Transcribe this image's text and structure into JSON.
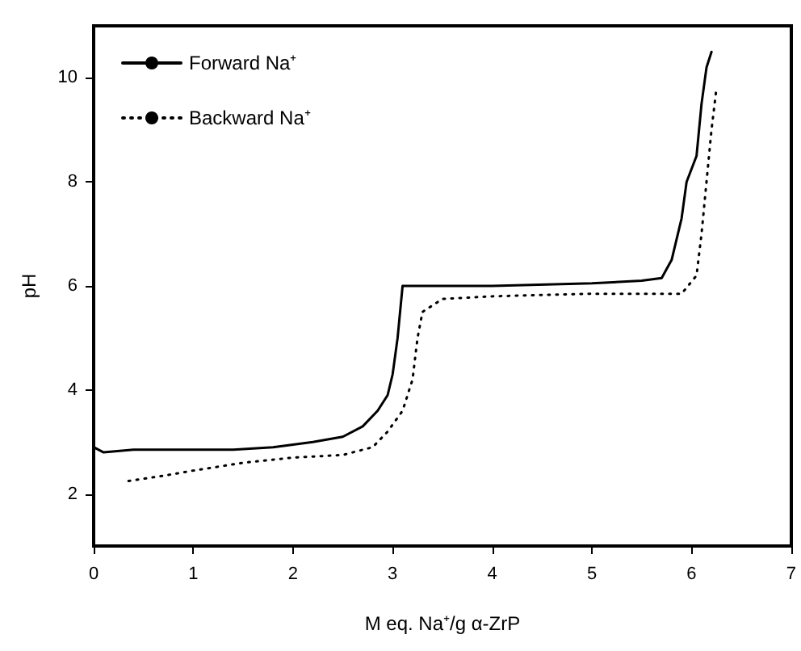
{
  "chart_data": {
    "type": "line",
    "xlabel": "M eq. Na⁺/g α-ZrP",
    "ylabel": "pH",
    "xlim": [
      0,
      7
    ],
    "xticks": [
      0,
      1,
      2,
      3,
      4,
      5,
      6,
      7
    ],
    "ylim": [
      1,
      11
    ],
    "yticks": [
      2,
      4,
      6,
      8,
      10
    ],
    "grid": false,
    "legend": "top left",
    "marker": "none",
    "series": [
      {
        "name": "Forward Na⁺",
        "color": "#000000",
        "line_style": "solid",
        "x": [
          0,
          0.1,
          0.4,
          1.4,
          1.8,
          2.2,
          2.5,
          2.7,
          2.85,
          2.95,
          3.0,
          3.05,
          3.1,
          4.0,
          5.0,
          5.5,
          5.7,
          5.8,
          5.9,
          5.95,
          6.05,
          6.1,
          6.15,
          6.2
        ],
        "values": [
          2.9,
          2.8,
          2.85,
          2.85,
          2.9,
          3.0,
          3.1,
          3.3,
          3.6,
          3.9,
          4.3,
          5.0,
          6.0,
          6.0,
          6.05,
          6.1,
          6.15,
          6.5,
          7.3,
          8.0,
          8.5,
          9.5,
          10.2,
          10.5
        ]
      },
      {
        "name": "Backward Na⁺",
        "color": "#000000",
        "line_style": "dotted",
        "x": [
          0.35,
          0.7,
          1.0,
          1.5,
          2.0,
          2.5,
          2.8,
          2.95,
          3.1,
          3.2,
          3.25,
          3.3,
          3.5,
          4.0,
          5.0,
          5.9,
          6.05,
          6.1,
          6.15,
          6.2,
          6.25
        ],
        "values": [
          2.25,
          2.35,
          2.45,
          2.6,
          2.7,
          2.75,
          2.9,
          3.2,
          3.6,
          4.2,
          5.0,
          5.5,
          5.75,
          5.8,
          5.85,
          5.85,
          6.2,
          7.0,
          8.0,
          9.0,
          9.8
        ]
      }
    ]
  }
}
